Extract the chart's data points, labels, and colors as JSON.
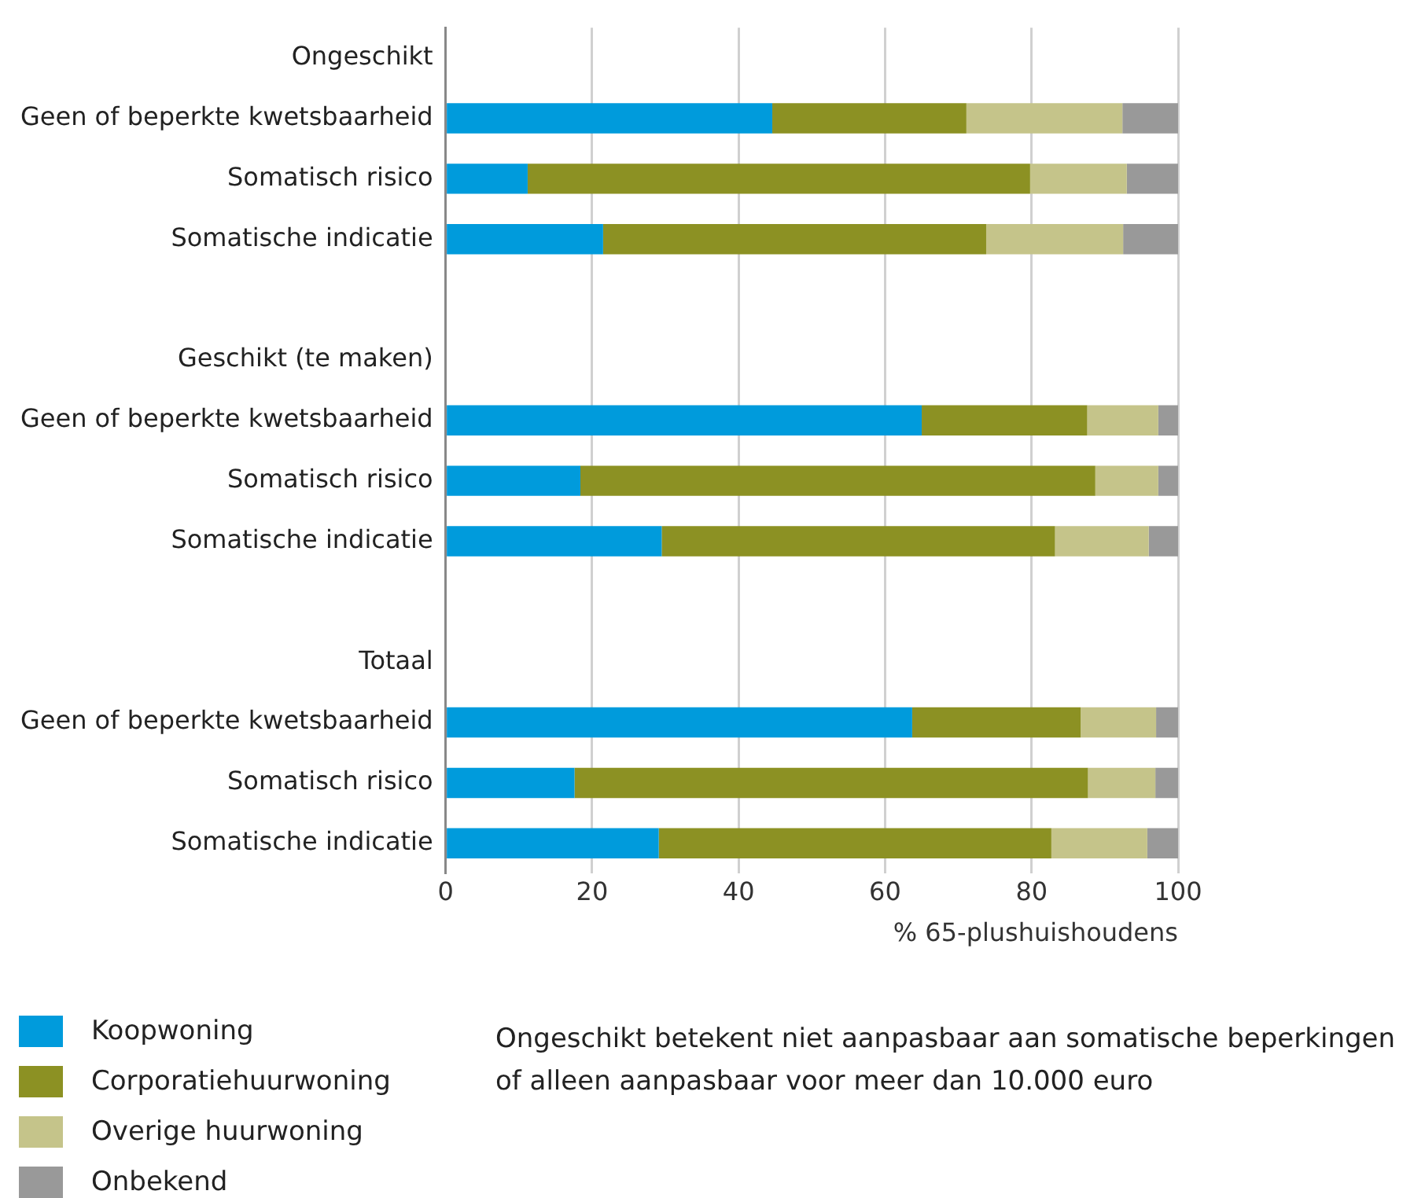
{
  "chart_data": {
    "type": "bar",
    "orientation": "horizontal",
    "stacked": true,
    "categories": [
      "Ongeschikt",
      "Geen of beperkte kwetsbaarheid",
      "Somatisch risico",
      "Somatische indicatie",
      null,
      "Geschikt (te maken)",
      "Geen of beperkte kwetsbaarheid",
      "Somatisch risico",
      "Somatische indicatie",
      null,
      "Totaal",
      "Geen of beperkte kwetsbaarheid",
      "Somatisch risico",
      "Somatische indicatie"
    ],
    "series": [
      {
        "name": "Koopwoning",
        "color": "#009bdc",
        "values": [
          null,
          44.6,
          11.2,
          21.5,
          null,
          null,
          65.0,
          18.4,
          29.5,
          null,
          null,
          63.7,
          17.6,
          29.1
        ]
      },
      {
        "name": "Corporatiehuurwoning",
        "color": "#8c9123",
        "values": [
          null,
          26.5,
          68.6,
          52.3,
          null,
          null,
          22.6,
          70.3,
          53.7,
          null,
          null,
          23.0,
          70.1,
          53.6
        ]
      },
      {
        "name": "Overige huurwoning",
        "color": "#c5c48a",
        "values": [
          null,
          21.3,
          13.2,
          18.7,
          null,
          null,
          9.7,
          8.6,
          12.8,
          null,
          null,
          10.3,
          9.2,
          13.1
        ]
      },
      {
        "name": "Onbekend",
        "color": "#999999",
        "values": [
          null,
          7.6,
          7.0,
          7.5,
          null,
          null,
          2.7,
          2.7,
          4.0,
          null,
          null,
          3.0,
          3.1,
          4.2
        ]
      }
    ],
    "xlabel": "% 65-plushuishoudens",
    "xlim": [
      0,
      100
    ],
    "xticks": [
      0,
      20,
      40,
      60,
      80,
      100
    ],
    "grid": "x",
    "legend": "bottom left",
    "annotations": [
      "Ongeschikt betekent niet aanpasbaar aan somatische beperkingen of alleen aanpasbaar voor meer dan 10.000 euro"
    ]
  }
}
